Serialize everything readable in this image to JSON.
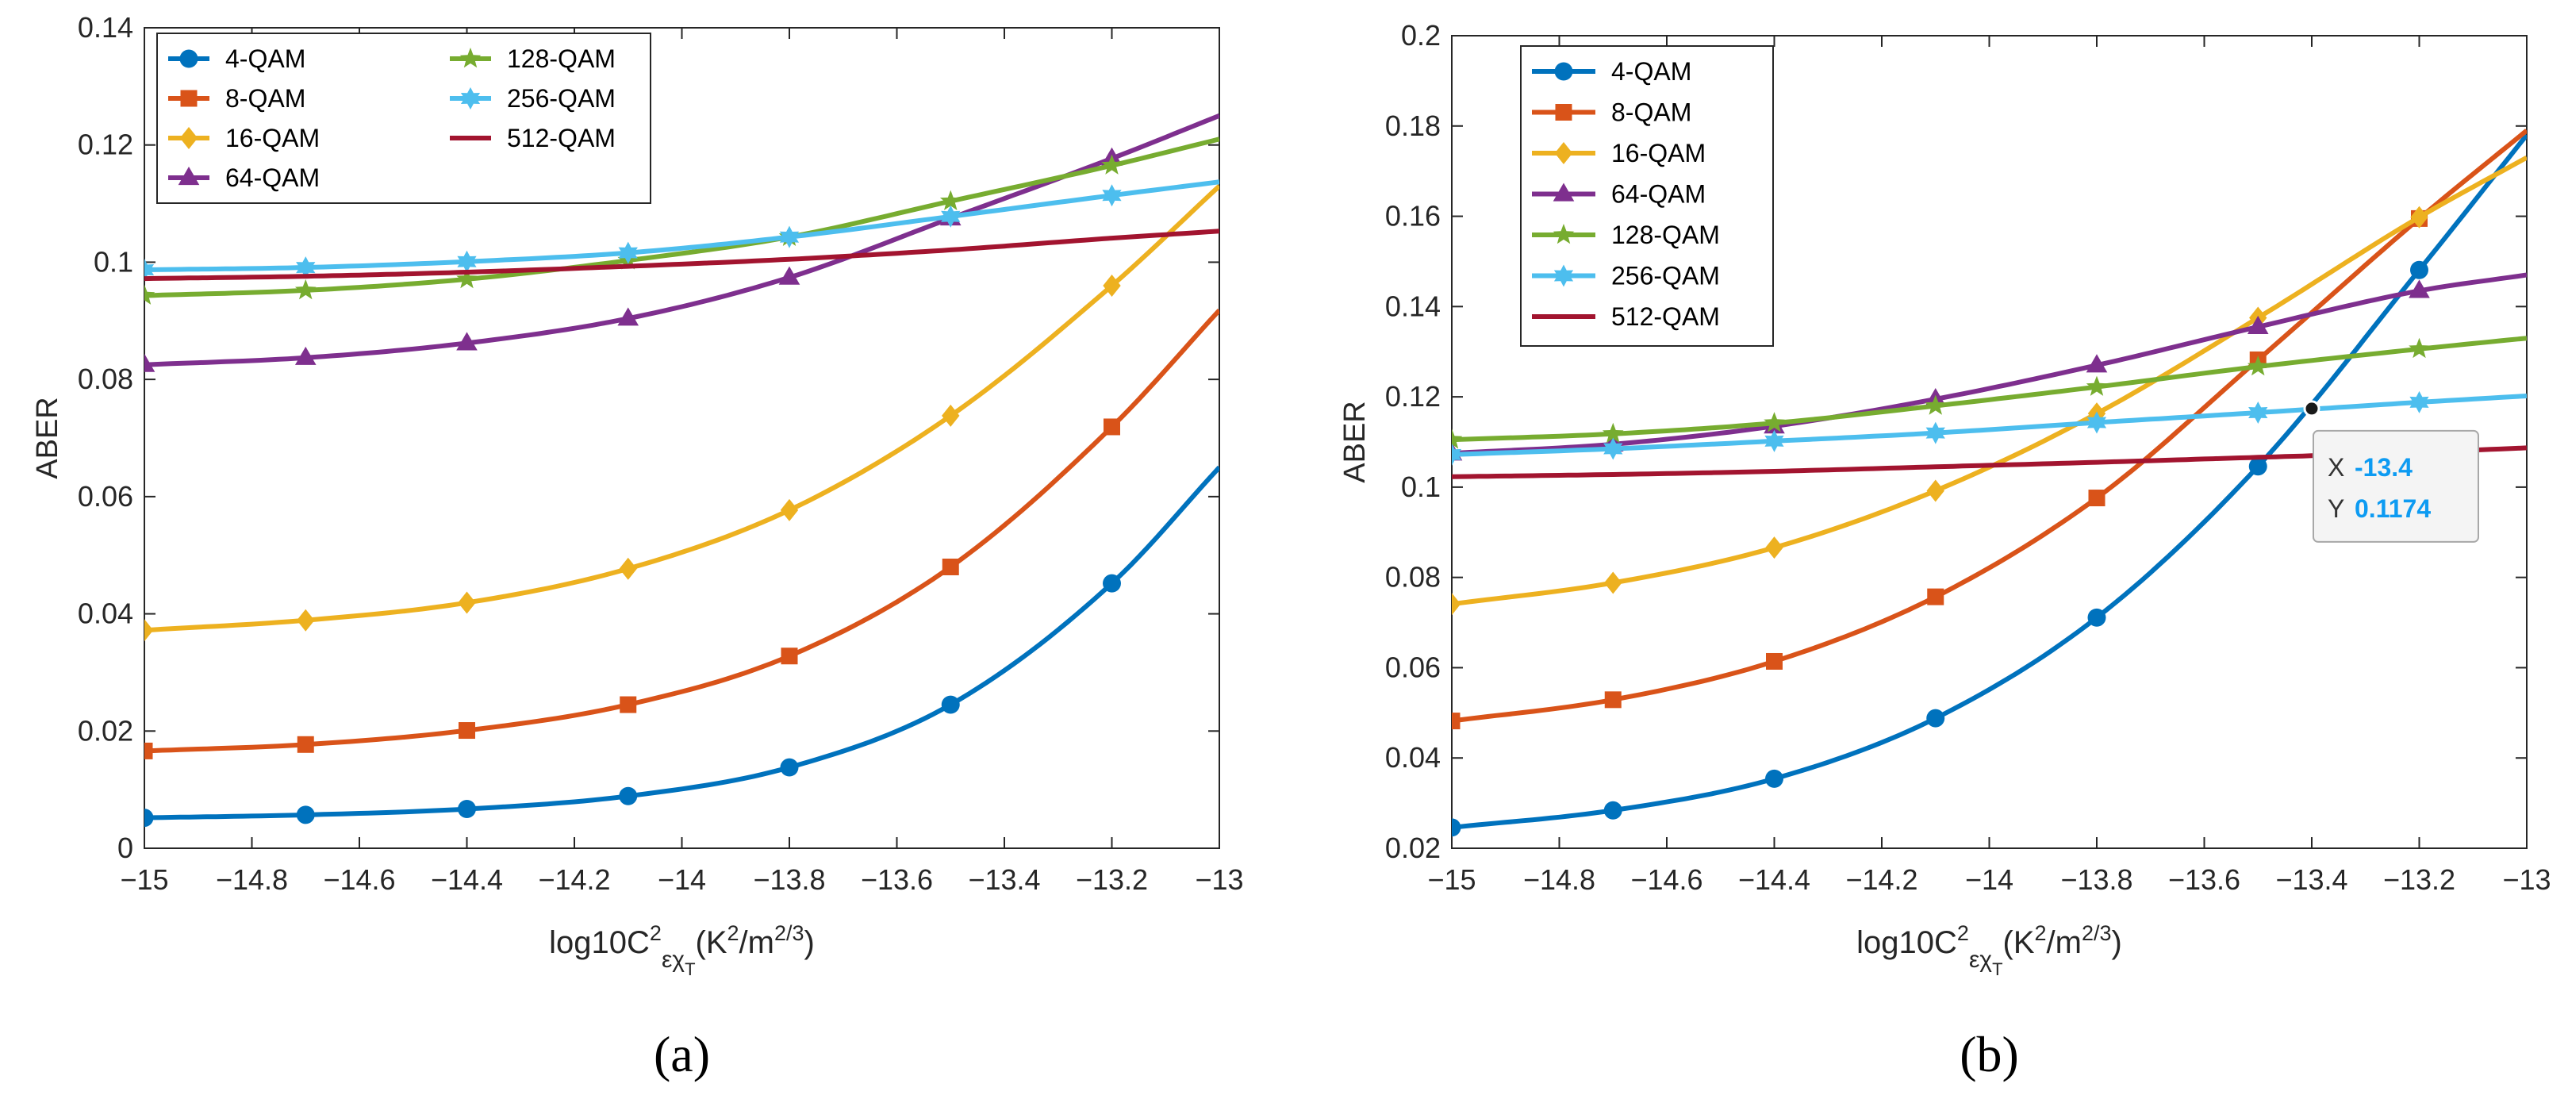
{
  "chart_data": [
    {
      "type": "line",
      "caption": "(a)",
      "xlabel": "log10C",
      "xlabel_sup": "2",
      "xlabel_sub": "εχ",
      "xlabel_subsub": "T",
      "xlabel_units": "(K",
      "xlabel_units_sup": "2",
      "xlabel_units_mid": "/m",
      "xlabel_units_sup2": "2/3",
      "xlabel_units_end": ")",
      "ylabel": "ABER",
      "xlim": [
        -15,
        -13
      ],
      "ylim": [
        0,
        0.14
      ],
      "x_ticks": [
        -15,
        -14.8,
        -14.6,
        -14.4,
        -14.2,
        -14,
        -13.8,
        -13.6,
        -13.4,
        -13.2,
        -13
      ],
      "x_tick_labels": [
        "−15",
        "−14.8",
        "−14.6",
        "−14.4",
        "−14.2",
        "−14",
        "−13.8",
        "−13.6",
        "−13.4",
        "−13.2",
        "−13"
      ],
      "y_ticks": [
        0,
        0.02,
        0.04,
        0.06,
        0.08,
        0.1,
        0.12,
        0.14
      ],
      "y_tick_labels": [
        "0",
        "0.02",
        "0.04",
        "0.06",
        "0.08",
        "0.1",
        "0.12",
        "0.14"
      ],
      "marker_x": [
        -15,
        -14.7,
        -14.4,
        -14.1,
        -13.8,
        -13.5,
        -13.2
      ],
      "legend_columns": 2,
      "legend_placement": "top-left",
      "series": [
        {
          "name": "4-QAM",
          "color": "#0072bd",
          "marker": "circle",
          "x": [
            -15,
            -14.7,
            -14.4,
            -14.1,
            -13.8,
            -13.5,
            -13.2,
            -13
          ],
          "values": [
            0.0052,
            0.0057,
            0.0067,
            0.0089,
            0.0138,
            0.0245,
            0.0452,
            0.065
          ]
        },
        {
          "name": "8-QAM",
          "color": "#d95319",
          "marker": "square",
          "x": [
            -15,
            -14.7,
            -14.4,
            -14.1,
            -13.8,
            -13.5,
            -13.2,
            -13
          ],
          "values": [
            0.0166,
            0.0177,
            0.0201,
            0.0245,
            0.0328,
            0.048,
            0.0719,
            0.0918
          ]
        },
        {
          "name": "16-QAM",
          "color": "#edb120",
          "marker": "diamond",
          "x": [
            -15,
            -14.7,
            -14.4,
            -14.1,
            -13.8,
            -13.5,
            -13.2,
            -13
          ],
          "values": [
            0.0372,
            0.0389,
            0.0419,
            0.0477,
            0.0577,
            0.0738,
            0.096,
            0.113
          ]
        },
        {
          "name": "64-QAM",
          "color": "#7e2f8e",
          "marker": "triangle",
          "x": [
            -15,
            -14.7,
            -14.4,
            -14.1,
            -13.8,
            -13.5,
            -13.2,
            -13
          ],
          "values": [
            0.0825,
            0.0837,
            0.0862,
            0.0904,
            0.0974,
            0.1075,
            0.1177,
            0.125
          ]
        },
        {
          "name": "128-QAM",
          "color": "#77ac30",
          "marker": "star",
          "x": [
            -15,
            -14.7,
            -14.4,
            -14.1,
            -13.8,
            -13.5,
            -13.2,
            -13
          ],
          "values": [
            0.0943,
            0.0952,
            0.0971,
            0.1003,
            0.1043,
            0.1104,
            0.1165,
            0.121
          ]
        },
        {
          "name": "256-QAM",
          "color": "#4dbeee",
          "marker": "hexagram",
          "x": [
            -15,
            -14.7,
            -14.4,
            -14.1,
            -13.8,
            -13.5,
            -13.2,
            -13
          ],
          "values": [
            0.0987,
            0.0991,
            0.1001,
            0.1016,
            0.1043,
            0.1078,
            0.1114,
            0.1137
          ]
        },
        {
          "name": "512-QAM",
          "color": "#a2142f",
          "marker": "none",
          "x": [
            -15,
            -14.7,
            -14.4,
            -14.1,
            -13.8,
            -13.5,
            -13.2,
            -13
          ],
          "values": [
            0.0972,
            0.0976,
            0.0983,
            0.0993,
            0.1005,
            0.1021,
            0.1041,
            0.1053
          ]
        }
      ]
    },
    {
      "type": "line",
      "caption": "(b)",
      "xlabel": "log10C",
      "xlabel_sup": "2",
      "xlabel_sub": "εχ",
      "xlabel_subsub": "T",
      "xlabel_units": "(K",
      "xlabel_units_sup": "2",
      "xlabel_units_mid": "/m",
      "xlabel_units_sup2": "2/3",
      "xlabel_units_end": ")",
      "ylabel": "ABER",
      "xlim": [
        -15,
        -13
      ],
      "ylim": [
        0.02,
        0.2
      ],
      "x_ticks": [
        -15,
        -14.8,
        -14.6,
        -14.4,
        -14.2,
        -14,
        -13.8,
        -13.6,
        -13.4,
        -13.2,
        -13
      ],
      "x_tick_labels": [
        "−15",
        "−14.8",
        "−14.6",
        "−14.4",
        "−14.2",
        "−14",
        "−13.8",
        "−13.6",
        "−13.4",
        "−13.2",
        "−13"
      ],
      "y_ticks": [
        0.02,
        0.04,
        0.06,
        0.08,
        0.1,
        0.12,
        0.14,
        0.16,
        0.18,
        0.2
      ],
      "y_tick_labels": [
        "0.02",
        "0.04",
        "0.06",
        "0.08",
        "0.1",
        "0.12",
        "0.14",
        "0.16",
        "0.18",
        "0.2"
      ],
      "marker_x": [
        -15,
        -14.7,
        -14.4,
        -14.1,
        -13.8,
        -13.5,
        -13.2
      ],
      "legend_columns": 1,
      "legend_placement": "top-left",
      "datatip": {
        "x": -13.4,
        "y": 0.1174,
        "x_label": "X",
        "y_label": "Y",
        "x_text": "-13.4",
        "y_text": "0.1174"
      },
      "series": [
        {
          "name": "4-QAM",
          "color": "#0072bd",
          "marker": "circle",
          "x": [
            -15,
            -14.7,
            -14.4,
            -14.1,
            -13.8,
            -13.5,
            -13.2,
            -13
          ],
          "values": [
            0.0246,
            0.0284,
            0.0354,
            0.0488,
            0.0711,
            0.1046,
            0.1481,
            0.178
          ]
        },
        {
          "name": "8-QAM",
          "color": "#d95319",
          "marker": "square",
          "x": [
            -15,
            -14.7,
            -14.4,
            -14.1,
            -13.8,
            -13.5,
            -13.2,
            -13
          ],
          "values": [
            0.0482,
            0.0529,
            0.0614,
            0.0757,
            0.0976,
            0.1282,
            0.1595,
            0.179
          ]
        },
        {
          "name": "16-QAM",
          "color": "#edb120",
          "marker": "diamond",
          "x": [
            -15,
            -14.7,
            -14.4,
            -14.1,
            -13.8,
            -13.5,
            -13.2,
            -13
          ],
          "values": [
            0.0741,
            0.0788,
            0.0866,
            0.0992,
            0.1163,
            0.1375,
            0.1598,
            0.173
          ]
        },
        {
          "name": "64-QAM",
          "color": "#7e2f8e",
          "marker": "triangle",
          "x": [
            -15,
            -14.7,
            -14.4,
            -14.1,
            -13.8,
            -13.5,
            -13.2,
            -13
          ],
          "values": [
            0.1075,
            0.1095,
            0.1135,
            0.1195,
            0.127,
            0.1355,
            0.1435,
            0.147
          ]
        },
        {
          "name": "128-QAM",
          "color": "#77ac30",
          "marker": "star",
          "x": [
            -15,
            -14.7,
            -14.4,
            -14.1,
            -13.8,
            -13.5,
            -13.2,
            -13
          ],
          "values": [
            0.1105,
            0.1118,
            0.1142,
            0.118,
            0.1222,
            0.1267,
            0.1306,
            0.133
          ]
        },
        {
          "name": "256-QAM",
          "color": "#4dbeee",
          "marker": "hexagram",
          "x": [
            -15,
            -14.7,
            -14.4,
            -14.1,
            -13.8,
            -13.5,
            -13.2,
            -13
          ],
          "values": [
            0.1072,
            0.1085,
            0.1102,
            0.112,
            0.1143,
            0.1165,
            0.1188,
            0.1202
          ]
        },
        {
          "name": "512-QAM",
          "color": "#a2142f",
          "marker": "none",
          "x": [
            -15,
            -14.7,
            -14.4,
            -14.1,
            -13.8,
            -13.5,
            -13.2,
            -13
          ],
          "values": [
            0.1023,
            0.1028,
            0.1035,
            0.1045,
            0.1055,
            0.1066,
            0.1077,
            0.1087
          ]
        }
      ]
    }
  ]
}
